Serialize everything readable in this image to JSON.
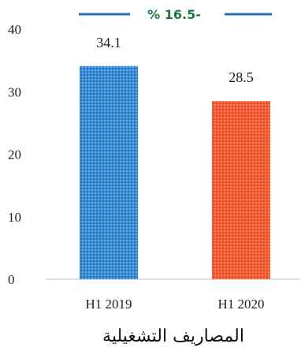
{
  "chart_data": {
    "type": "bar",
    "title": "المصاريف التشغيلية",
    "categories": [
      "H1 2019",
      "H1 2020"
    ],
    "values": [
      34.1,
      28.5
    ],
    "value_labels": [
      "34.1",
      "28.5"
    ],
    "bar_colors": [
      "#2b7bc4",
      "#f0502a"
    ],
    "ylim": [
      0,
      40
    ],
    "yticks": [
      0,
      10,
      20,
      30,
      40
    ],
    "ytick_labels": [
      "0",
      "10",
      "20",
      "30",
      "40"
    ],
    "grid": false,
    "change_annotation": "% 16.5-",
    "change_color": "#1e7a3c",
    "annotation_line_color": "#2a6fb5"
  }
}
